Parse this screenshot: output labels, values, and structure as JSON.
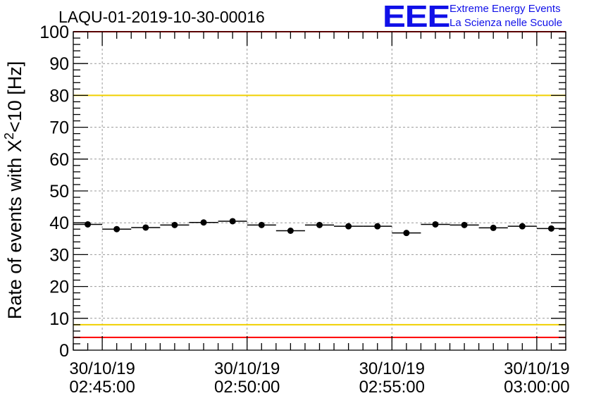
{
  "chart_data": {
    "type": "scatter",
    "title": "LAQU-01-2019-10-30-00016",
    "ylabel": "Rate of events with X",
    "ylabel_sup": "2",
    "ylabel_suffix": "<10 [Hz]",
    "ylim": [
      0,
      100
    ],
    "yticks": [
      0,
      10,
      20,
      30,
      40,
      50,
      60,
      70,
      80,
      90,
      100
    ],
    "xlim_minutes": [
      0,
      17
    ],
    "xticks": [
      {
        "at_min": 1,
        "date": "30/10/19",
        "time": "02:45:00"
      },
      {
        "at_min": 6,
        "date": "30/10/19",
        "time": "02:50:00"
      },
      {
        "at_min": 11,
        "date": "30/10/19",
        "time": "02:55:00"
      },
      {
        "at_min": 16,
        "date": "30/10/19",
        "time": "03:00:00"
      }
    ],
    "grid": true,
    "bin_width_minutes": 1,
    "points": [
      {
        "x_min": 0.5,
        "y": 39.5
      },
      {
        "x_min": 1.5,
        "y": 38.0
      },
      {
        "x_min": 2.5,
        "y": 38.5
      },
      {
        "x_min": 3.5,
        "y": 39.3
      },
      {
        "x_min": 4.5,
        "y": 40.1
      },
      {
        "x_min": 5.5,
        "y": 40.5
      },
      {
        "x_min": 6.5,
        "y": 39.3
      },
      {
        "x_min": 7.5,
        "y": 37.5
      },
      {
        "x_min": 8.5,
        "y": 39.3
      },
      {
        "x_min": 9.5,
        "y": 38.9
      },
      {
        "x_min": 10.5,
        "y": 38.9
      },
      {
        "x_min": 11.5,
        "y": 36.8
      },
      {
        "x_min": 12.5,
        "y": 39.5
      },
      {
        "x_min": 13.5,
        "y": 39.3
      },
      {
        "x_min": 14.5,
        "y": 38.4
      },
      {
        "x_min": 15.5,
        "y": 38.9
      },
      {
        "x_min": 16.5,
        "y": 38.2
      }
    ],
    "reference_lines": [
      {
        "name": "upper-red-limit",
        "y": 100,
        "color": "#ff0000"
      },
      {
        "name": "upper-yellow-limit",
        "y": 80,
        "color": "#f0d000"
      },
      {
        "name": "lower-yellow-limit",
        "y": 8,
        "color": "#f0d000"
      },
      {
        "name": "lower-red-limit",
        "y": 4,
        "color": "#ff0000"
      }
    ]
  },
  "logo": {
    "mark": "EEE",
    "line1": "Extreme Energy Events",
    "line2": "La Scienza nelle Scuole",
    "color": "#1010e8"
  }
}
